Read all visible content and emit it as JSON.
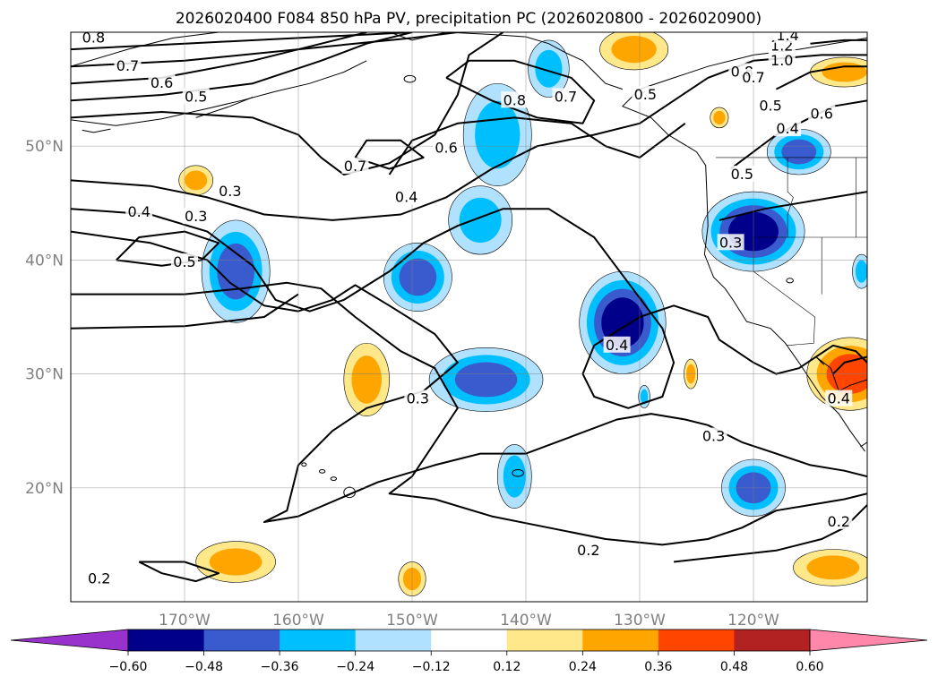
{
  "chart_data": {
    "type": "heatmap",
    "title": "2026020400 F084 850 hPa PV, precipitation PC (2026020800 - 2026020900)",
    "xlabel": "",
    "ylabel": "",
    "xlim": [
      -180,
      -110
    ],
    "ylim": [
      10,
      60
    ],
    "x_ticks": [
      {
        "value": -170,
        "label": "170°W"
      },
      {
        "value": -160,
        "label": "160°W"
      },
      {
        "value": -150,
        "label": "150°W"
      },
      {
        "value": -140,
        "label": "140°W"
      },
      {
        "value": -130,
        "label": "130°W"
      },
      {
        "value": -120,
        "label": "120°W"
      }
    ],
    "y_ticks": [
      {
        "value": 20,
        "label": "20°N"
      },
      {
        "value": 30,
        "label": "30°N"
      },
      {
        "value": 40,
        "label": "40°N"
      },
      {
        "value": 50,
        "label": "50°N"
      }
    ],
    "grid": true,
    "colorbar": {
      "orientation": "horizontal",
      "extend": "both",
      "boundaries": [
        -0.6,
        -0.48,
        -0.36,
        -0.24,
        -0.12,
        0.12,
        0.24,
        0.36,
        0.48,
        0.6
      ],
      "tick_labels": [
        "−0.60",
        "−0.48",
        "−0.36",
        "−0.24",
        "−0.12",
        "0.12",
        "0.24",
        "0.36",
        "0.48",
        "0.60"
      ],
      "colors": [
        "#9932cc",
        "#00008b",
        "#3a5bcd",
        "#00bfff",
        "#b0e2ff",
        "#ffffff",
        "#ffe88a",
        "#ffa500",
        "#ff4500",
        "#b22222",
        "#ff88aa"
      ]
    },
    "shaded_regions": [
      {
        "lon": -165.5,
        "lat": 39,
        "rlon": 3.0,
        "rlat": 4.5,
        "value": -0.4
      },
      {
        "lon": -149.5,
        "lat": 38.5,
        "rlon": 3.0,
        "rlat": 3.0,
        "value": -0.38
      },
      {
        "lon": -144,
        "lat": 43.5,
        "rlon": 2.8,
        "rlat": 3.0,
        "value": -0.28
      },
      {
        "lon": -142.5,
        "lat": 51,
        "rlon": 3.0,
        "rlat": 4.5,
        "value": -0.3
      },
      {
        "lon": -138,
        "lat": 56.8,
        "rlon": 1.8,
        "rlat": 2.5,
        "value": -0.35
      },
      {
        "lon": -143.5,
        "lat": 29.5,
        "rlon": 5.0,
        "rlat": 2.8,
        "value": -0.4
      },
      {
        "lon": -131.5,
        "lat": 34.5,
        "rlon": 3.8,
        "rlat": 4.5,
        "value": -0.5
      },
      {
        "lon": -120,
        "lat": 42.5,
        "rlon": 4.5,
        "rlat": 3.5,
        "value": -0.55
      },
      {
        "lon": -116,
        "lat": 49.5,
        "rlon": 2.8,
        "rlat": 2.0,
        "value": -0.4
      },
      {
        "lon": -120,
        "lat": 20,
        "rlon": 2.8,
        "rlat": 2.5,
        "value": -0.4
      },
      {
        "lon": -141,
        "lat": 21,
        "rlon": 1.5,
        "rlat": 2.8,
        "value": -0.3
      },
      {
        "lon": -110.5,
        "lat": 39,
        "rlon": 0.8,
        "rlat": 1.5,
        "value": -0.3
      },
      {
        "lon": -129.6,
        "lat": 28,
        "rlon": 0.5,
        "rlat": 1.0,
        "value": -0.3
      },
      {
        "lon": -111.5,
        "lat": 30,
        "rlon": 3.8,
        "rlat": 3.2,
        "value": 0.42
      },
      {
        "lon": -165.5,
        "lat": 13.5,
        "rlon": 3.5,
        "rlat": 1.8,
        "value": 0.3
      },
      {
        "lon": -154,
        "lat": 29.5,
        "rlon": 2.0,
        "rlat": 3.2,
        "value": 0.3
      },
      {
        "lon": -113,
        "lat": 13,
        "rlon": 3.5,
        "rlat": 1.6,
        "value": 0.3
      },
      {
        "lon": -130.5,
        "lat": 58.5,
        "rlon": 3.0,
        "rlat": 1.8,
        "value": 0.3
      },
      {
        "lon": -112,
        "lat": 56.5,
        "rlon": 3.0,
        "rlat": 1.3,
        "value": 0.3
      },
      {
        "lon": -169,
        "lat": 47,
        "rlon": 1.5,
        "rlat": 1.3,
        "value": 0.3
      },
      {
        "lon": -150,
        "lat": 12,
        "rlon": 1.2,
        "rlat": 1.5,
        "value": 0.3
      },
      {
        "lon": -123,
        "lat": 52.5,
        "rlon": 0.8,
        "rlat": 0.9,
        "value": 0.3
      },
      {
        "lon": -125.5,
        "lat": 30,
        "rlon": 0.6,
        "rlat": 1.3,
        "value": 0.26
      }
    ],
    "contour_values": [
      0.2,
      0.3,
      0.4,
      0.5,
      0.6,
      0.7,
      0.8,
      1.0,
      1.2,
      1.4
    ],
    "contour_labels": [
      {
        "lon": -178,
        "lat": 59.5,
        "text": "0.8"
      },
      {
        "lon": -175,
        "lat": 57,
        "text": "0.7"
      },
      {
        "lon": -172,
        "lat": 55.5,
        "text": "0.6"
      },
      {
        "lon": -169,
        "lat": 54.3,
        "text": "0.5"
      },
      {
        "lon": -141,
        "lat": 54,
        "text": "0.8"
      },
      {
        "lon": -136.5,
        "lat": 54.3,
        "text": "0.7"
      },
      {
        "lon": -147,
        "lat": 49.8,
        "text": "0.6"
      },
      {
        "lon": -150.5,
        "lat": 45.5,
        "text": "0.4"
      },
      {
        "lon": -155,
        "lat": 48.2,
        "text": "0.7"
      },
      {
        "lon": -166,
        "lat": 46,
        "text": "0.3"
      },
      {
        "lon": -174,
        "lat": 44.2,
        "text": "0.4"
      },
      {
        "lon": -169,
        "lat": 43.8,
        "text": "0.3"
      },
      {
        "lon": -170,
        "lat": 39.8,
        "text": "0.5"
      },
      {
        "lon": -132,
        "lat": 32.5,
        "text": "0.4"
      },
      {
        "lon": -149.5,
        "lat": 27.8,
        "text": "0.3"
      },
      {
        "lon": -123.5,
        "lat": 24.5,
        "text": "0.3"
      },
      {
        "lon": -122,
        "lat": 41.5,
        "text": "0.3"
      },
      {
        "lon": -134.5,
        "lat": 14.5,
        "text": "0.2"
      },
      {
        "lon": -177.5,
        "lat": 12,
        "text": "0.2"
      },
      {
        "lon": -112.5,
        "lat": 17,
        "text": "0.2"
      },
      {
        "lon": -112.5,
        "lat": 27.8,
        "text": "0.4"
      },
      {
        "lon": -121,
        "lat": 47.5,
        "text": "0.5"
      },
      {
        "lon": -117,
        "lat": 51.5,
        "text": "0.4"
      },
      {
        "lon": -118.5,
        "lat": 53.5,
        "text": "0.5"
      },
      {
        "lon": -114,
        "lat": 52.8,
        "text": "0.6"
      },
      {
        "lon": -121,
        "lat": 56.5,
        "text": "0.8"
      },
      {
        "lon": -120,
        "lat": 56,
        "text": "0.7"
      },
      {
        "lon": -117.5,
        "lat": 58.8,
        "text": "1.2"
      },
      {
        "lon": -117.5,
        "lat": 57.5,
        "text": "1.0"
      },
      {
        "lon": -117,
        "lat": 59.7,
        "text": "1.4"
      },
      {
        "lon": -129.5,
        "lat": 54.5,
        "text": "0.5"
      }
    ]
  }
}
